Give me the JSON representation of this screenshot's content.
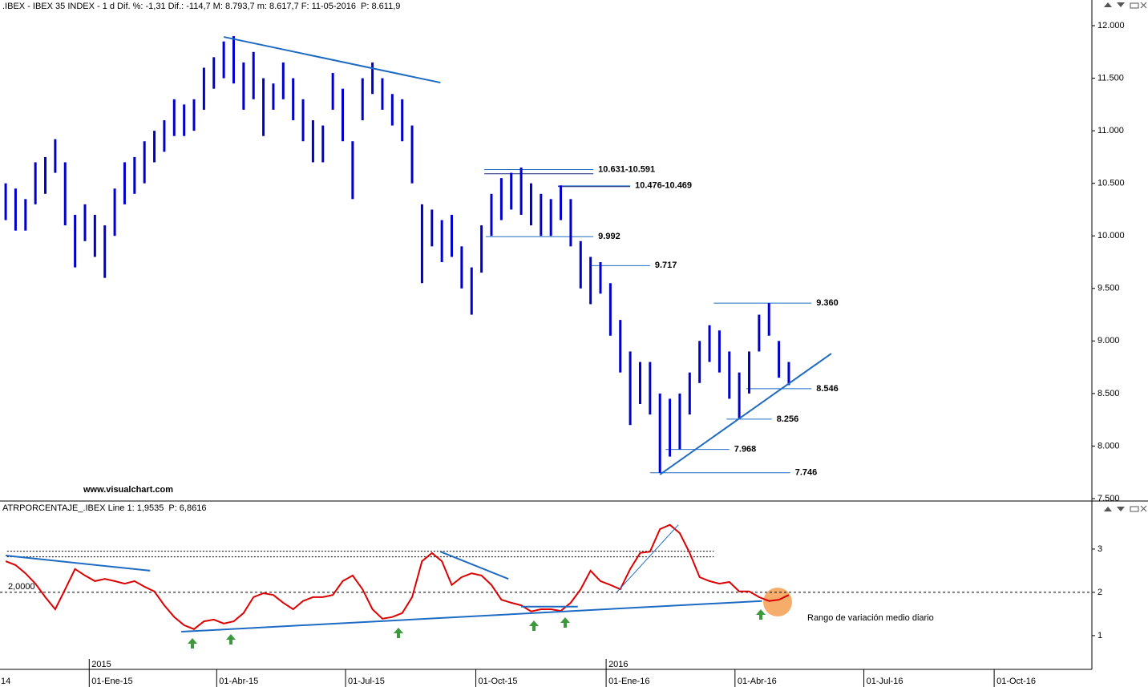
{
  "chart_data": [
    {
      "type": "range-bar",
      "header": ".IBEX - IBEX 35 INDEX - 1 d Dif. %: -1,31  Dif.: -114,7  M: 8.793,7  m: 8.617,7  F: 11-05-2016",
      "header_price": "P: 8.611,9",
      "watermark": "www.visualchart.com",
      "color": "#0000cc",
      "trend_color": "#1e6bc4",
      "level_color": "#1e6bc4",
      "label_color": "#cc0000",
      "xlim": [
        "2014-10-30",
        "2016-12-09"
      ],
      "ylim": [
        7477,
        12168
      ],
      "yticks": [
        {
          "value": 12000,
          "label": "12.000"
        },
        {
          "value": 11500,
          "label": "11.500"
        },
        {
          "value": 11000,
          "label": "11.000"
        },
        {
          "value": 10500,
          "label": "10.500"
        },
        {
          "value": 10000,
          "label": "10.000"
        },
        {
          "value": 9500,
          "label": "9.500"
        },
        {
          "value": 9000,
          "label": "9.000"
        },
        {
          "value": 8500,
          "label": "8.500"
        },
        {
          "value": 8000,
          "label": "8.000"
        },
        {
          "value": 7500,
          "label": "7.500"
        }
      ],
      "x": [
        "2014-11-03",
        "2014-11-10",
        "2014-11-17",
        "2014-11-24",
        "2014-12-01",
        "2014-12-08",
        "2014-12-15",
        "2014-12-22",
        "2014-12-29",
        "2015-01-05",
        "2015-01-12",
        "2015-01-19",
        "2015-01-26",
        "2015-02-02",
        "2015-02-09",
        "2015-02-16",
        "2015-02-23",
        "2015-03-02",
        "2015-03-09",
        "2015-03-16",
        "2015-03-23",
        "2015-03-30",
        "2015-04-06",
        "2015-04-13",
        "2015-04-20",
        "2015-04-27",
        "2015-05-04",
        "2015-05-11",
        "2015-05-18",
        "2015-05-25",
        "2015-06-01",
        "2015-06-08",
        "2015-06-15",
        "2015-06-22",
        "2015-06-29",
        "2015-07-06",
        "2015-07-13",
        "2015-07-20",
        "2015-07-27",
        "2015-08-03",
        "2015-08-10",
        "2015-08-17",
        "2015-08-24",
        "2015-08-31",
        "2015-09-07",
        "2015-09-14",
        "2015-09-21",
        "2015-09-28",
        "2015-10-05",
        "2015-10-12",
        "2015-10-19",
        "2015-10-26",
        "2015-11-02",
        "2015-11-09",
        "2015-11-16",
        "2015-11-23",
        "2015-11-30",
        "2015-12-07",
        "2015-12-14",
        "2015-12-21",
        "2015-12-28",
        "2016-01-04",
        "2016-01-11",
        "2016-01-18",
        "2016-01-25",
        "2016-02-01",
        "2016-02-08",
        "2016-02-15",
        "2016-02-22",
        "2016-02-29",
        "2016-03-07",
        "2016-03-14",
        "2016-03-21",
        "2016-03-28",
        "2016-04-04",
        "2016-04-11",
        "2016-04-18",
        "2016-04-25",
        "2016-05-02",
        "2016-05-09"
      ],
      "high": [
        10500,
        10450,
        10350,
        10700,
        10750,
        10920,
        10700,
        10200,
        10300,
        10200,
        10100,
        10450,
        10700,
        10750,
        10900,
        11000,
        11100,
        11300,
        11250,
        11300,
        11600,
        11700,
        11850,
        11900,
        11650,
        11750,
        11500,
        11450,
        11650,
        11500,
        11300,
        11100,
        11050,
        11550,
        11400,
        10900,
        11500,
        11650,
        11500,
        11350,
        11300,
        11050,
        10300,
        10250,
        10150,
        10200,
        9900,
        9700,
        10100,
        10400,
        10550,
        10600,
        10650,
        10500,
        10400,
        10350,
        10480,
        10350,
        9950,
        9800,
        9750,
        9550,
        9200,
        8900,
        8800,
        8800,
        8500,
        8450,
        8500,
        8700,
        9000,
        9150,
        9100,
        8900,
        8700,
        8900,
        9250,
        9360,
        9000,
        8800
      ],
      "low": [
        10150,
        10050,
        10050,
        10300,
        10400,
        10600,
        10100,
        9700,
        9950,
        9800,
        9600,
        10000,
        10300,
        10400,
        10500,
        10700,
        10800,
        10950,
        10950,
        11000,
        11200,
        11400,
        11500,
        11450,
        11200,
        11300,
        10950,
        11200,
        11300,
        11100,
        10900,
        10700,
        10700,
        11200,
        10900,
        10350,
        11100,
        11350,
        11200,
        11050,
        10900,
        10500,
        9550,
        9900,
        9750,
        9800,
        9500,
        9250,
        9650,
        10000,
        10150,
        10250,
        10200,
        10100,
        10000,
        10000,
        10150,
        9900,
        9500,
        9350,
        9450,
        9050,
        8700,
        8200,
        8400,
        8300,
        7746,
        7900,
        7968,
        8300,
        8600,
        8800,
        8700,
        8450,
        8256,
        8500,
        8900,
        9050,
        8650,
        8580
      ],
      "levels": [
        {
          "label": "10.631-10.591",
          "values": [
            10631,
            10591
          ],
          "x": [
            "2015-10-07",
            "2015-12-23"
          ]
        },
        {
          "label": "10.476-10.469",
          "values": [
            10476,
            10469
          ],
          "x": [
            "2015-11-28",
            "2016-01-18"
          ]
        },
        {
          "label": "9.992",
          "values": [
            9992
          ],
          "x": [
            "2015-10-08",
            "2015-12-23"
          ]
        },
        {
          "label": "9.717",
          "values": [
            9717
          ],
          "x": [
            "2015-12-21",
            "2016-02-01"
          ]
        },
        {
          "label": "9.360",
          "values": [
            9360
          ],
          "x": [
            "2016-03-17",
            "2016-05-25"
          ]
        },
        {
          "label": "8.546",
          "values": [
            8546
          ],
          "x": [
            "2016-04-09",
            "2016-05-25"
          ]
        },
        {
          "label": "8.256",
          "values": [
            8256
          ],
          "x": [
            "2016-03-26",
            "2016-04-27"
          ]
        },
        {
          "label": "7.968",
          "values": [
            7968
          ],
          "x": [
            "2016-02-12",
            "2016-03-28"
          ]
        },
        {
          "label": "7.746",
          "values": [
            7746
          ],
          "x": [
            "2016-02-01",
            "2016-05-10"
          ]
        }
      ],
      "trendlines": [
        {
          "x": [
            "2015-04-06",
            "2015-09-06"
          ],
          "y": [
            11893,
            11458
          ]
        },
        {
          "x": [
            "2016-02-08",
            "2016-06-08"
          ],
          "y": [
            7729,
            8880
          ]
        }
      ]
    },
    {
      "type": "line",
      "header": "ATRPORCENTAJE_.IBEX Line 1: 1,9535",
      "header_price": "P: 6,8616",
      "note": "Rango de variación medio diario",
      "color": "#dd0000",
      "trend_color": "#1e6bc4",
      "xlim": [
        "2014-10-30",
        "2016-12-09"
      ],
      "ylim": [
        0.22,
        3.74
      ],
      "yticks": [
        1,
        2,
        3
      ],
      "xticks": [
        {
          "value": "2014-10-01",
          "label": "14"
        },
        {
          "value": "2015-01-01",
          "label": "01-Ene-15"
        },
        {
          "value": "2015-04-01",
          "label": "01-Abr-15"
        },
        {
          "value": "2015-07-01",
          "label": "01-Jul-15"
        },
        {
          "value": "2015-10-01",
          "label": "01-Oct-15"
        },
        {
          "value": "2016-01-01",
          "label": "01-Ene-16"
        },
        {
          "value": "2016-04-01",
          "label": "01-Abr-16"
        },
        {
          "value": "2016-07-01",
          "label": "01-Jul-16"
        },
        {
          "value": "2016-10-01",
          "label": "01-Oct-16"
        }
      ],
      "year_ticks": [
        {
          "value": "2015-01-01",
          "label": "2015"
        },
        {
          "value": "2016-01-01",
          "label": "2016"
        }
      ],
      "x": [
        "2014-11-03",
        "2014-11-10",
        "2014-11-17",
        "2014-11-24",
        "2014-12-01",
        "2014-12-08",
        "2014-12-15",
        "2014-12-22",
        "2014-12-29",
        "2015-01-05",
        "2015-01-12",
        "2015-01-19",
        "2015-01-26",
        "2015-02-02",
        "2015-02-09",
        "2015-02-16",
        "2015-02-23",
        "2015-03-02",
        "2015-03-09",
        "2015-03-16",
        "2015-03-23",
        "2015-03-30",
        "2015-04-06",
        "2015-04-13",
        "2015-04-20",
        "2015-04-27",
        "2015-05-04",
        "2015-05-11",
        "2015-05-18",
        "2015-05-25",
        "2015-06-01",
        "2015-06-08",
        "2015-06-15",
        "2015-06-22",
        "2015-06-29",
        "2015-07-06",
        "2015-07-13",
        "2015-07-20",
        "2015-07-27",
        "2015-08-03",
        "2015-08-10",
        "2015-08-17",
        "2015-08-24",
        "2015-08-31",
        "2015-09-07",
        "2015-09-14",
        "2015-09-21",
        "2015-09-28",
        "2015-10-05",
        "2015-10-12",
        "2015-10-19",
        "2015-10-26",
        "2015-11-02",
        "2015-11-09",
        "2015-11-16",
        "2015-11-23",
        "2015-11-30",
        "2015-12-07",
        "2015-12-14",
        "2015-12-21",
        "2015-12-28",
        "2016-01-04",
        "2016-01-11",
        "2016-01-18",
        "2016-01-25",
        "2016-02-01",
        "2016-02-08",
        "2016-02-15",
        "2016-02-22",
        "2016-02-29",
        "2016-03-07",
        "2016-03-14",
        "2016-03-21",
        "2016-03-28",
        "2016-04-04",
        "2016-04-11",
        "2016-04-18",
        "2016-04-25",
        "2016-05-02",
        "2016-05-09"
      ],
      "values": [
        2.72,
        2.63,
        2.44,
        2.2,
        1.89,
        1.61,
        2.07,
        2.54,
        2.39,
        2.26,
        2.31,
        2.26,
        2.2,
        2.26,
        2.13,
        2.02,
        1.7,
        1.43,
        1.24,
        1.15,
        1.33,
        1.37,
        1.28,
        1.33,
        1.52,
        1.89,
        1.98,
        1.94,
        1.76,
        1.61,
        1.8,
        1.89,
        1.89,
        1.94,
        2.26,
        2.39,
        2.07,
        1.61,
        1.39,
        1.43,
        1.52,
        1.89,
        2.72,
        2.91,
        2.72,
        2.17,
        2.35,
        2.44,
        2.39,
        2.17,
        1.83,
        1.76,
        1.7,
        1.56,
        1.61,
        1.61,
        1.57,
        1.76,
        2.07,
        2.5,
        2.26,
        2.17,
        2.07,
        2.54,
        2.91,
        2.94,
        3.46,
        3.56,
        3.37,
        2.91,
        2.35,
        2.26,
        2.2,
        2.24,
        2.02,
        2.02,
        1.89,
        1.8,
        1.83,
        1.94
      ],
      "reference_lines": [
        {
          "value": 2,
          "label": "2,0000"
        },
        {
          "value": 2.95,
          "x": [
            "2014-11-04",
            "2016-03-17"
          ]
        },
        {
          "value": 2.82,
          "x": [
            "2014-11-04",
            "2016-03-17"
          ]
        }
      ],
      "trendlines": [
        {
          "x": [
            "2015-03-07",
            "2016-04-20"
          ],
          "y": [
            1.09,
            1.8
          ]
        },
        {
          "x": [
            "2014-11-03",
            "2015-02-13"
          ],
          "y": [
            2.85,
            2.5
          ]
        },
        {
          "x": [
            "2015-09-06",
            "2015-10-24"
          ],
          "y": [
            2.94,
            2.31
          ]
        },
        {
          "x": [
            "2016-01-09",
            "2016-02-21"
          ],
          "y": [
            2.02,
            3.56
          ]
        },
        {
          "x": [
            "2015-11-02",
            "2015-12-12"
          ],
          "y": [
            1.67,
            1.67
          ]
        }
      ]
    }
  ]
}
